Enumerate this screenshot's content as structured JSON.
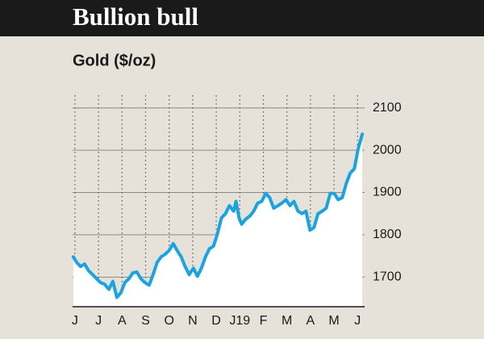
{
  "chart_data": {
    "type": "line",
    "title": "Bullion bull",
    "subtitle": "Gold ($/oz)",
    "color": "#1ba3e0",
    "fill": "#ffffff",
    "grid": true,
    "xlim": [
      -0.1,
      12.3
    ],
    "xticks": [
      {
        "value": 0,
        "label": "J"
      },
      {
        "value": 1,
        "label": "J"
      },
      {
        "value": 2,
        "label": "A"
      },
      {
        "value": 3,
        "label": "S"
      },
      {
        "value": 4,
        "label": "O"
      },
      {
        "value": 5,
        "label": "N"
      },
      {
        "value": 6,
        "label": "D"
      },
      {
        "value": 7,
        "label": "J19"
      },
      {
        "value": 8,
        "label": "F"
      },
      {
        "value": 9,
        "label": "M"
      },
      {
        "value": 10,
        "label": "A"
      },
      {
        "value": 11,
        "label": "M"
      },
      {
        "value": 12,
        "label": "J"
      }
    ],
    "ylim": [
      1630,
      2130
    ],
    "yticks": [
      1700,
      1800,
      1900,
      2000,
      2100
    ],
    "x": [
      -0.07,
      0.07,
      0.24,
      0.41,
      0.58,
      0.75,
      0.92,
      1.09,
      1.26,
      1.44,
      1.61,
      1.78,
      1.95,
      2.12,
      2.29,
      2.46,
      2.63,
      2.8,
      2.97,
      3.15,
      3.32,
      3.49,
      3.66,
      3.83,
      4.0,
      4.17,
      4.34,
      4.51,
      4.68,
      4.85,
      5.03,
      5.2,
      5.37,
      5.54,
      5.71,
      5.88,
      6.05,
      6.22,
      6.39,
      6.56,
      6.74,
      6.84,
      6.97,
      7.08,
      7.25,
      7.42,
      7.59,
      7.76,
      7.93,
      8.1,
      8.27,
      8.44,
      8.62,
      8.79,
      8.96,
      9.13,
      9.3,
      9.47,
      9.64,
      9.81,
      9.98,
      10.15,
      10.32,
      10.5,
      10.67,
      10.84,
      11.01,
      11.18,
      11.35,
      11.52,
      11.69,
      11.86,
      12.03,
      12.2
    ],
    "values": [
      1748,
      1735,
      1725,
      1731,
      1715,
      1706,
      1696,
      1687,
      1683,
      1671,
      1690,
      1652,
      1663,
      1687,
      1696,
      1710,
      1712,
      1696,
      1687,
      1681,
      1706,
      1735,
      1748,
      1754,
      1763,
      1779,
      1763,
      1748,
      1725,
      1706,
      1721,
      1702,
      1721,
      1748,
      1767,
      1773,
      1802,
      1840,
      1850,
      1869,
      1856,
      1879,
      1840,
      1825,
      1837,
      1844,
      1856,
      1875,
      1879,
      1898,
      1888,
      1863,
      1869,
      1875,
      1883,
      1869,
      1879,
      1856,
      1850,
      1856,
      1811,
      1817,
      1850,
      1856,
      1863,
      1898,
      1898,
      1883,
      1888,
      1921,
      1946,
      1956,
      2004,
      2038
    ]
  }
}
